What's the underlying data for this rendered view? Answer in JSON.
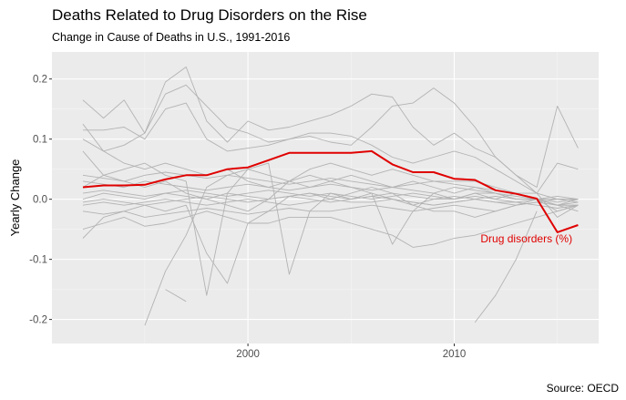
{
  "title": "Deaths Related to Drug Disorders on the Rise",
  "subtitle": "Change in Cause of Deaths in U.S., 1991-2016",
  "caption": "Source: OECD",
  "colors": {
    "panel": "#ebebeb",
    "grid": "#ffffff",
    "highlight": "#e00000",
    "other": "#b3b3b3"
  },
  "chart_data": {
    "type": "line",
    "xlabel": "",
    "ylabel": "Yearly Change",
    "xlim": [
      1991,
      2016
    ],
    "ylim": [
      -0.24,
      0.245
    ],
    "x_ticks": [
      2000,
      2010
    ],
    "y_ticks": [
      -0.2,
      -0.1,
      0.0,
      0.1,
      0.2
    ],
    "y_tick_labels": [
      "-0.2",
      "-0.1",
      "0.0",
      "0.1",
      "0.2"
    ],
    "grid": true,
    "legend": "none",
    "highlight": {
      "annotation": "Drug disorders (%)",
      "x": [
        1992,
        1993,
        1994,
        1995,
        1996,
        1997,
        1998,
        1999,
        2000,
        2001,
        2002,
        2003,
        2004,
        2005,
        2006,
        2007,
        2008,
        2009,
        2010,
        2011,
        2012,
        2013,
        2014,
        2015,
        2016
      ],
      "values": [
        0.02,
        0.023,
        0.023,
        0.024,
        0.033,
        0.04,
        0.04,
        0.05,
        0.053,
        0.065,
        0.077,
        0.077,
        0.077,
        0.077,
        0.08,
        0.058,
        0.045,
        0.045,
        0.034,
        0.032,
        0.015,
        0.009,
        0.001,
        -0.055,
        -0.043
      ]
    },
    "x": [
      1992,
      1993,
      1994,
      1995,
      1996,
      1997,
      1998,
      1999,
      2000,
      2001,
      2002,
      2003,
      2004,
      2005,
      2006,
      2007,
      2008,
      2009,
      2010,
      2011,
      2012,
      2013,
      2014,
      2015,
      2016
    ],
    "series": [
      {
        "values": [
          0.165,
          0.135,
          0.165,
          0.11,
          0.195,
          0.22,
          0.13,
          0.095,
          0.13,
          0.115,
          0.12,
          0.13,
          0.14,
          0.155,
          0.175,
          0.17,
          0.12,
          0.09,
          0.11,
          0.085,
          0.07,
          0.04,
          0.01,
          -0.03,
          -0.01
        ]
      },
      {
        "values": [
          0.115,
          0.115,
          0.12,
          0.1,
          0.15,
          0.16,
          0.1,
          0.08,
          0.085,
          0.09,
          0.1,
          0.105,
          0.095,
          0.09,
          0.12,
          0.155,
          0.16,
          0.185,
          0.16,
          0.12,
          0.07,
          0.04,
          0.02,
          0.155,
          0.085
        ]
      },
      {
        "values": [
          0.125,
          0.08,
          0.09,
          0.11,
          0.175,
          0.19,
          0.155,
          0.12,
          0.11,
          0.095,
          0.1,
          0.11,
          0.11,
          0.105,
          0.09,
          0.07,
          0.06,
          0.07,
          0.08,
          0.07,
          0.05,
          0.03,
          0.01,
          0.06,
          0.05
        ]
      },
      {
        "values": [
          0.08,
          0.04,
          0.03,
          0.02,
          0.03,
          0.01,
          0.0,
          -0.01,
          -0.02,
          0.0,
          0.03,
          0.05,
          0.06,
          0.05,
          0.04,
          0.05,
          0.04,
          0.03,
          0.03,
          0.03,
          0.02,
          0.01,
          0.0,
          -0.01,
          -0.02
        ]
      },
      {
        "values": [
          -0.065,
          -0.03,
          -0.02,
          -0.01,
          -0.02,
          -0.01,
          -0.09,
          -0.14,
          -0.04,
          -0.02,
          0.005,
          0.01,
          0.0,
          0.01,
          0.02,
          0.01,
          -0.01,
          0.0,
          0.0,
          0.01,
          0.01,
          0.0,
          0.0,
          -0.01,
          -0.01
        ]
      },
      {
        "values": [
          0.02,
          0.04,
          0.05,
          0.06,
          0.04,
          0.03,
          -0.16,
          0.01,
          0.05,
          0.06,
          -0.125,
          -0.02,
          0.01,
          0.0,
          0.01,
          -0.075,
          -0.02,
          0.01,
          0.0,
          0.01,
          0.0,
          0.01,
          0.01,
          0.0,
          0.0
        ]
      },
      {
        "values": [
          -0.05,
          -0.04,
          -0.03,
          -0.045,
          -0.04,
          -0.03,
          -0.02,
          -0.03,
          -0.04,
          -0.04,
          -0.03,
          -0.03,
          -0.03,
          -0.04,
          -0.05,
          -0.06,
          -0.08,
          -0.075,
          -0.065,
          -0.06,
          -0.05,
          -0.04,
          -0.03,
          -0.02,
          -0.01
        ]
      },
      {
        "values": [
          null,
          null,
          null,
          null,
          -0.15,
          -0.17,
          null,
          null,
          null,
          null,
          null,
          null,
          null,
          null,
          null,
          null,
          null,
          null,
          null,
          -0.205,
          -0.16,
          -0.1,
          -0.02,
          null,
          null
        ]
      },
      {
        "values": [
          null,
          null,
          null,
          -0.21,
          -0.12,
          -0.06,
          0.02,
          0.04,
          0.05,
          0.04,
          0.03,
          0.02,
          0.03,
          0.02,
          0.01,
          0.0,
          -0.01,
          -0.02,
          -0.02,
          -0.03,
          -0.02,
          -0.01,
          0.0,
          0.0,
          0.0
        ]
      },
      {
        "values": [
          0.0,
          0.01,
          0.005,
          0.0,
          0.01,
          0.005,
          0.0,
          0.01,
          0.005,
          0.0,
          0.005,
          0.01,
          0.005,
          0.0,
          0.005,
          0.01,
          0.005,
          0.0,
          0.005,
          0.0,
          0.005,
          0.0,
          0.0,
          -0.005,
          0.0
        ]
      },
      {
        "values": [
          -0.01,
          -0.005,
          -0.01,
          -0.005,
          0.0,
          -0.005,
          -0.01,
          -0.005,
          0.0,
          -0.005,
          -0.01,
          -0.005,
          0.0,
          -0.005,
          -0.005,
          0.0,
          -0.005,
          -0.01,
          -0.005,
          0.0,
          -0.005,
          -0.005,
          -0.01,
          -0.015,
          -0.01
        ]
      },
      {
        "values": [
          0.03,
          0.025,
          0.02,
          0.03,
          0.025,
          0.02,
          0.015,
          0.02,
          0.025,
          0.02,
          0.015,
          0.02,
          0.025,
          0.02,
          0.015,
          0.02,
          0.015,
          0.01,
          0.02,
          0.015,
          0.01,
          0.005,
          0.0,
          -0.01,
          -0.005
        ]
      },
      {
        "values": [
          -0.02,
          -0.025,
          -0.02,
          -0.03,
          -0.025,
          -0.02,
          -0.015,
          -0.02,
          -0.025,
          -0.02,
          -0.015,
          -0.02,
          -0.02,
          -0.015,
          -0.01,
          -0.015,
          -0.02,
          -0.015,
          -0.01,
          -0.015,
          -0.02,
          -0.01,
          -0.005,
          -0.01,
          -0.01
        ]
      },
      {
        "values": [
          0.01,
          0.015,
          0.01,
          0.005,
          0.01,
          0.015,
          0.01,
          0.005,
          0.01,
          0.015,
          0.01,
          0.005,
          0.01,
          0.005,
          0.0,
          0.005,
          0.01,
          0.005,
          0.0,
          0.005,
          0.0,
          -0.005,
          0.0,
          0.005,
          0.0
        ]
      },
      {
        "values": [
          -0.005,
          0.0,
          -0.005,
          -0.01,
          -0.005,
          0.0,
          0.005,
          0.0,
          -0.005,
          0.0,
          0.005,
          0.0,
          -0.005,
          0.0,
          0.005,
          0.0,
          -0.005,
          -0.01,
          -0.005,
          0.0,
          -0.005,
          -0.01,
          -0.005,
          0.0,
          -0.005
        ]
      },
      {
        "values": [
          0.04,
          0.035,
          0.03,
          0.04,
          0.045,
          0.04,
          0.035,
          0.04,
          0.035,
          0.03,
          0.025,
          0.03,
          0.035,
          0.03,
          0.025,
          0.02,
          0.025,
          0.03,
          0.025,
          0.02,
          0.015,
          0.01,
          0.0,
          -0.02,
          -0.01
        ]
      },
      {
        "values": [
          0.1,
          0.08,
          0.06,
          0.05,
          0.06,
          0.05,
          0.04,
          0.05,
          0.03,
          0.02,
          0.03,
          0.04,
          0.03,
          0.04,
          0.03,
          0.02,
          0.03,
          0.02,
          0.01,
          0.02,
          0.01,
          0.0,
          0.0,
          -0.01,
          0.0
        ]
      }
    ]
  }
}
